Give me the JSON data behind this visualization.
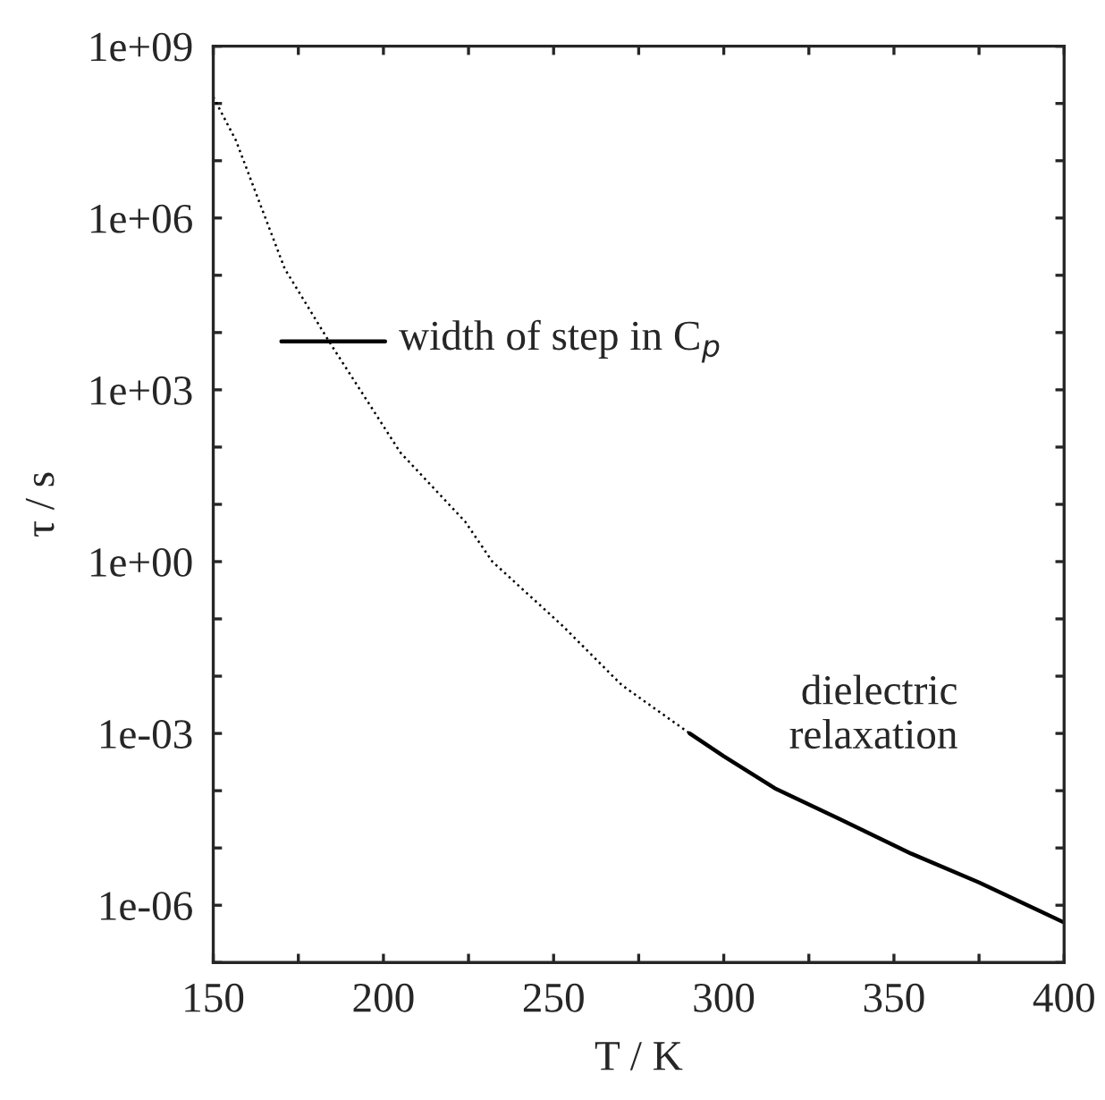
{
  "chart_data": {
    "type": "line",
    "xlabel": "T / K",
    "ylabel": "τ / s",
    "log": "y",
    "xlim": [
      150,
      400
    ],
    "ylim": [
      1e-07,
      1000000000.0
    ],
    "xticks": [
      150,
      {
        "value": 175,
        "label": null
      },
      200,
      {
        "value": 225,
        "label": null
      },
      250,
      {
        "value": 275,
        "label": null
      },
      300,
      {
        "value": 325,
        "label": null
      },
      350,
      {
        "value": 375,
        "label": null
      },
      400
    ],
    "yticks": [
      {
        "value": 1e-07,
        "label": null
      },
      {
        "value": 1e-06,
        "label": "1e-06"
      },
      {
        "value": 1e-05,
        "label": null
      },
      {
        "value": 0.0001,
        "label": null
      },
      {
        "value": 0.001,
        "label": "1e-03"
      },
      {
        "value": 0.01,
        "label": null
      },
      {
        "value": 0.1,
        "label": null
      },
      {
        "value": 1,
        "label": "1e+00"
      },
      {
        "value": 10,
        "label": null
      },
      {
        "value": 100,
        "label": null
      },
      {
        "value": 1000,
        "label": "1e+03"
      },
      {
        "value": 10000.0,
        "label": null
      },
      {
        "value": 100000.0,
        "label": null
      },
      {
        "value": 1000000.0,
        "label": "1e+06"
      },
      {
        "value": 10000000.0,
        "label": null
      },
      {
        "value": 100000000.0,
        "label": null
      },
      {
        "value": 1000000000.0,
        "label": "1e+09"
      }
    ],
    "grid": false,
    "legend": false,
    "marker": "none",
    "series": [
      {
        "color": "#000000",
        "line_style": "dotted",
        "x": [
          150,
          156.6,
          171,
          184,
          205,
          224,
          232,
          252.6,
          270,
          290
        ],
        "values": [
          130000000.0,
          23000000.0,
          130000.0,
          7000.0,
          80,
          5,
          1,
          0.076,
          0.007,
          0.001
        ]
      },
      {
        "name": "dielectric\nrelaxation",
        "color": "#000000",
        "line_style": "solid",
        "x": [
          290,
          300,
          315,
          334,
          355,
          375,
          400
        ],
        "values": [
          0.001,
          0.0004,
          0.00011,
          3.2e-05,
          8e-06,
          2.5e-06,
          5e-07
        ]
      },
      {
        "name": "width of step in C$_{p}$",
        "color": "#000000",
        "line_style": "solid",
        "x": [
          170,
          200.5
        ],
        "values": [
          7000,
          7000
        ]
      }
    ]
  }
}
